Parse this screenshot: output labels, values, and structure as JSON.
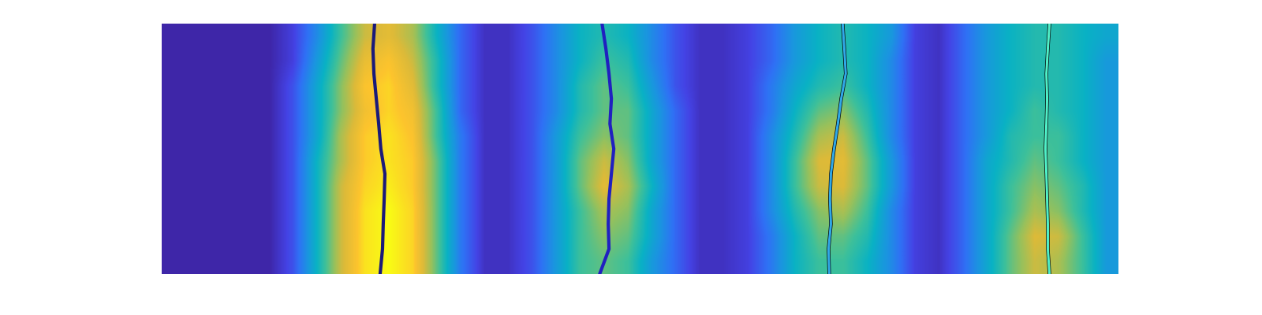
{
  "chart_data": {
    "type": "heatmap",
    "tick_labels": false,
    "color_range": [
      0,
      1
    ],
    "cells": [
      [
        0,
        0,
        0,
        0,
        0,
        0.1,
        0.3,
        0.55,
        0.75,
        0.8,
        0.7,
        0.45,
        0.2,
        0.05,
        0.05,
        0.15,
        0.3,
        0.45,
        0.5,
        0.45,
        0.3,
        0.15,
        0.05,
        0.05,
        0.1,
        0.2,
        0.35,
        0.45,
        0.5,
        0.45,
        0.35,
        0.1,
        0.05,
        0.2,
        0.35,
        0.45,
        0.5,
        0.5,
        0.45,
        0.4
      ],
      [
        0,
        0,
        0,
        0,
        0,
        0.1,
        0.35,
        0.6,
        0.82,
        0.88,
        0.75,
        0.5,
        0.2,
        0.05,
        0.05,
        0.15,
        0.3,
        0.45,
        0.55,
        0.5,
        0.3,
        0.15,
        0.05,
        0.05,
        0.1,
        0.2,
        0.35,
        0.45,
        0.5,
        0.45,
        0.3,
        0.1,
        0.05,
        0.2,
        0.35,
        0.45,
        0.5,
        0.5,
        0.45,
        0.35
      ],
      [
        0,
        0,
        0,
        0,
        0,
        0.15,
        0.4,
        0.65,
        0.88,
        0.92,
        0.8,
        0.5,
        0.2,
        0.05,
        0.05,
        0.15,
        0.3,
        0.5,
        0.6,
        0.55,
        0.35,
        0.15,
        0.05,
        0.05,
        0.1,
        0.25,
        0.4,
        0.5,
        0.55,
        0.45,
        0.3,
        0.1,
        0.05,
        0.2,
        0.35,
        0.45,
        0.5,
        0.5,
        0.45,
        0.35
      ],
      [
        0,
        0,
        0,
        0,
        0,
        0.15,
        0.4,
        0.65,
        0.85,
        0.92,
        0.85,
        0.55,
        0.2,
        0.05,
        0.05,
        0.15,
        0.3,
        0.5,
        0.6,
        0.6,
        0.4,
        0.2,
        0.05,
        0.05,
        0.1,
        0.25,
        0.45,
        0.6,
        0.65,
        0.5,
        0.3,
        0.1,
        0.05,
        0.2,
        0.35,
        0.45,
        0.55,
        0.5,
        0.45,
        0.35
      ],
      [
        0,
        0,
        0,
        0,
        0,
        0.15,
        0.4,
        0.7,
        0.9,
        0.95,
        0.88,
        0.55,
        0.25,
        0.05,
        0.05,
        0.15,
        0.35,
        0.55,
        0.65,
        0.6,
        0.4,
        0.2,
        0.05,
        0.05,
        0.1,
        0.3,
        0.5,
        0.7,
        0.75,
        0.55,
        0.3,
        0.1,
        0.05,
        0.2,
        0.35,
        0.5,
        0.55,
        0.55,
        0.45,
        0.35
      ],
      [
        0,
        0,
        0,
        0,
        0,
        0.15,
        0.45,
        0.7,
        0.9,
        0.95,
        0.9,
        0.6,
        0.25,
        0.05,
        0.05,
        0.15,
        0.35,
        0.6,
        0.75,
        0.65,
        0.4,
        0.2,
        0.05,
        0.05,
        0.1,
        0.3,
        0.55,
        0.78,
        0.8,
        0.6,
        0.35,
        0.1,
        0.05,
        0.2,
        0.4,
        0.5,
        0.6,
        0.55,
        0.45,
        0.35
      ],
      [
        0,
        0,
        0,
        0,
        0,
        0.15,
        0.45,
        0.75,
        0.92,
        0.97,
        0.9,
        0.6,
        0.25,
        0.05,
        0.05,
        0.15,
        0.35,
        0.6,
        0.8,
        0.7,
        0.45,
        0.2,
        0.05,
        0.05,
        0.1,
        0.3,
        0.55,
        0.75,
        0.78,
        0.6,
        0.35,
        0.1,
        0.05,
        0.2,
        0.4,
        0.55,
        0.65,
        0.6,
        0.5,
        0.35
      ],
      [
        0,
        0,
        0,
        0,
        0,
        0.15,
        0.45,
        0.75,
        0.95,
        1.0,
        0.92,
        0.6,
        0.25,
        0.05,
        0.05,
        0.15,
        0.35,
        0.55,
        0.7,
        0.65,
        0.4,
        0.2,
        0.05,
        0.05,
        0.1,
        0.3,
        0.5,
        0.65,
        0.7,
        0.55,
        0.3,
        0.1,
        0.05,
        0.2,
        0.4,
        0.55,
        0.7,
        0.65,
        0.5,
        0.35
      ],
      [
        0,
        0,
        0,
        0,
        0,
        0.15,
        0.45,
        0.75,
        0.95,
        1.0,
        0.92,
        0.6,
        0.25,
        0.05,
        0.05,
        0.15,
        0.35,
        0.55,
        0.65,
        0.6,
        0.4,
        0.2,
        0.05,
        0.05,
        0.1,
        0.25,
        0.45,
        0.6,
        0.6,
        0.5,
        0.3,
        0.1,
        0.05,
        0.2,
        0.4,
        0.6,
        0.78,
        0.75,
        0.55,
        0.35
      ],
      [
        0,
        0,
        0,
        0,
        0,
        0.15,
        0.45,
        0.75,
        0.95,
        1.0,
        0.92,
        0.6,
        0.25,
        0.05,
        0.05,
        0.15,
        0.35,
        0.55,
        0.6,
        0.55,
        0.35,
        0.2,
        0.05,
        0.05,
        0.1,
        0.25,
        0.45,
        0.55,
        0.55,
        0.45,
        0.3,
        0.1,
        0.05,
        0.2,
        0.4,
        0.6,
        0.75,
        0.7,
        0.55,
        0.35
      ]
    ],
    "lines": [
      {
        "color": "#1a1a7a",
        "y": [
          0,
          1,
          2,
          3,
          4,
          5,
          6,
          7,
          8,
          9,
          10
        ],
        "x": [
          8.91,
          8.84,
          8.88,
          8.98,
          9.08,
          9.17,
          9.34,
          9.31,
          9.27,
          9.24,
          9.14
        ]
      },
      {
        "color": "#2020c0",
        "y": [
          0,
          1,
          2,
          3,
          4,
          5,
          6,
          7,
          8,
          9,
          10
        ],
        "x": [
          18.42,
          18.58,
          18.71,
          18.81,
          18.75,
          18.91,
          18.81,
          18.71,
          18.68,
          18.71,
          18.32
        ]
      },
      {
        "color": "#30a8e8",
        "y": [
          0,
          1,
          2,
          3,
          4,
          5,
          6,
          7,
          8,
          9,
          10
        ],
        "x": [
          28.48,
          28.55,
          28.61,
          28.42,
          28.28,
          28.12,
          27.99,
          27.95,
          27.99,
          27.89,
          27.92
        ]
      },
      {
        "color": "#50f0c8",
        "y": [
          0,
          1,
          2,
          3,
          4,
          5,
          6,
          7,
          8,
          9,
          10
        ],
        "x": [
          37.13,
          37.06,
          37.0,
          37.03,
          37.0,
          36.96,
          37.0,
          37.03,
          37.06,
          37.06,
          37.13
        ]
      }
    ]
  }
}
